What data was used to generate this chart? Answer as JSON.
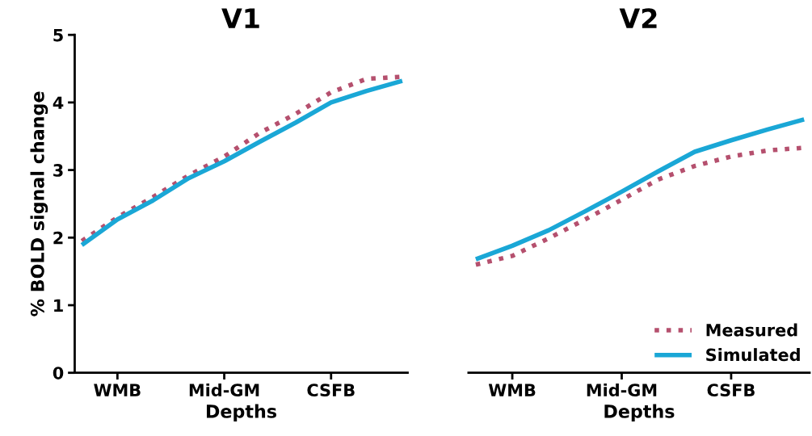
{
  "chart_data": [
    {
      "type": "line",
      "title": "V1",
      "xlabel": "Depths",
      "ylabel": "% BOLD signal change",
      "categories": [
        null,
        "WMB",
        null,
        null,
        "Mid-GM",
        null,
        null,
        "CSFB",
        null,
        null
      ],
      "ylim": [
        0,
        5
      ],
      "yticks": [
        0,
        1,
        2,
        3,
        4,
        5
      ],
      "grid": false,
      "legend": false,
      "series": [
        {
          "color": "#b5506e",
          "line_style": "dotted",
          "values": [
            1.95,
            2.3,
            2.6,
            2.92,
            3.2,
            3.55,
            3.83,
            4.15,
            4.35,
            4.38
          ]
        },
        {
          "color": "#1aa7d6",
          "line_style": "solid",
          "values": [
            1.89,
            2.27,
            2.55,
            2.88,
            3.13,
            3.42,
            3.7,
            4.0,
            4.17,
            4.32
          ]
        }
      ]
    },
    {
      "type": "line",
      "title": "V2",
      "xlabel": "Depths",
      "categories": [
        null,
        "WMB",
        null,
        null,
        "Mid-GM",
        null,
        null,
        "CSFB",
        null,
        null
      ],
      "ylim": [
        0,
        5
      ],
      "tick_labels": "x",
      "grid": false,
      "legend": "bottom right",
      "series": [
        {
          "name": "Measured",
          "color": "#b5506e",
          "line_style": "dotted",
          "values": [
            1.6,
            1.73,
            1.99,
            2.27,
            2.56,
            2.86,
            3.06,
            3.2,
            3.29,
            3.33
          ]
        },
        {
          "name": "Simulated",
          "color": "#1aa7d6",
          "line_style": "solid",
          "values": [
            1.68,
            1.88,
            2.11,
            2.39,
            2.68,
            2.98,
            3.27,
            3.44,
            3.6,
            3.75
          ]
        }
      ]
    }
  ]
}
